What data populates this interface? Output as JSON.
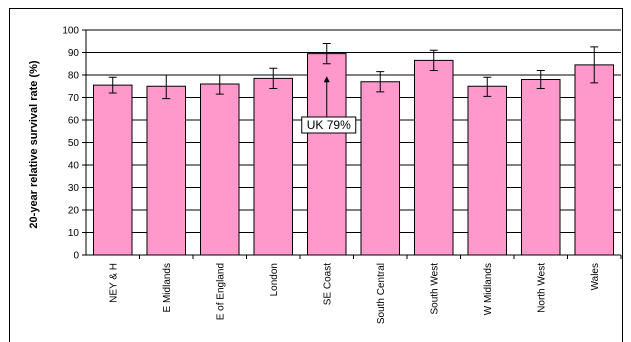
{
  "chart_data": {
    "type": "bar",
    "title": "",
    "xlabel": "",
    "ylabel": "20-year relative survival rate (%)",
    "ylim": [
      0,
      100
    ],
    "ytick_step": 10,
    "grid": "major horizontal",
    "categories": [
      "NEY & H",
      "E Midlands",
      "E of England",
      "London",
      "SE Coast",
      "South Central",
      "South West",
      "W Midlands",
      "North West",
      "Wales"
    ],
    "values": [
      75.5,
      75,
      76,
      78.5,
      89.5,
      77,
      86.5,
      75,
      78,
      84.5
    ],
    "error_low": [
      72,
      69.5,
      71.5,
      74,
      85,
      72.5,
      82,
      70.5,
      74,
      76.5
    ],
    "error_high": [
      79,
      80,
      80,
      83,
      94,
      81.5,
      91,
      79,
      82,
      92.5
    ],
    "bar_color": "#ff99cc",
    "annotation": {
      "text": "UK 79%",
      "value": 79,
      "category": "SE Coast"
    }
  }
}
